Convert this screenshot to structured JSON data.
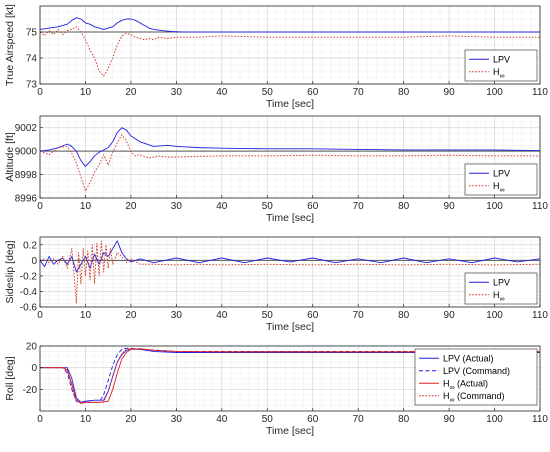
{
  "chart_data": [
    {
      "type": "line",
      "xlabel": "Time [sec]",
      "ylabel": "True Airspeed [kt]",
      "xlim": [
        0,
        110
      ],
      "ylim": [
        73,
        76
      ],
      "xticks": [
        0,
        10,
        20,
        30,
        40,
        50,
        60,
        70,
        80,
        90,
        100,
        110
      ],
      "yticks": [
        73,
        74,
        75
      ],
      "grid": true,
      "legend": "bottom-right",
      "reference": {
        "value": 75,
        "color": "#555555"
      },
      "series": [
        {
          "name": "LPV",
          "color": "#2020e0",
          "dash": "solid",
          "x": [
            0,
            2,
            4,
            6,
            7,
            8,
            9,
            10,
            11,
            12,
            13,
            14,
            15,
            16,
            17,
            18,
            19,
            20,
            21,
            22,
            23,
            24,
            25,
            27,
            29,
            31,
            33,
            36,
            40,
            50,
            60,
            70,
            80,
            90,
            100,
            110
          ],
          "y": [
            75.1,
            75.15,
            75.2,
            75.3,
            75.45,
            75.55,
            75.5,
            75.35,
            75.3,
            75.2,
            75.15,
            75.1,
            75.15,
            75.2,
            75.35,
            75.45,
            75.5,
            75.5,
            75.45,
            75.35,
            75.25,
            75.15,
            75.1,
            75.05,
            75.02,
            75.0,
            75.0,
            75.0,
            75.0,
            75.0,
            75.0,
            75.0,
            75.0,
            75.0,
            75.0,
            75.0
          ]
        },
        {
          "name": "H",
          "name_sub": "∞",
          "color": "#cc3322",
          "dash": "dotted",
          "x": [
            0,
            1,
            2,
            3,
            4,
            5,
            6,
            7,
            8,
            9,
            10,
            11,
            12,
            13,
            14,
            15,
            16,
            17,
            18,
            19,
            20,
            21,
            22,
            23,
            24,
            25,
            26,
            28,
            30,
            35,
            40,
            50,
            60,
            70,
            80,
            90,
            100,
            110
          ],
          "y": [
            75,
            74.85,
            75.05,
            74.9,
            75.1,
            74.9,
            75.05,
            75.1,
            75.2,
            75.0,
            74.7,
            74.3,
            74.0,
            73.5,
            73.3,
            73.6,
            74.0,
            74.5,
            74.85,
            74.95,
            74.9,
            74.8,
            74.75,
            74.7,
            74.75,
            74.7,
            74.8,
            74.75,
            74.8,
            74.8,
            74.85,
            74.8,
            74.8,
            74.8,
            74.8,
            74.85,
            74.8,
            74.8
          ]
        }
      ]
    },
    {
      "type": "line",
      "xlabel": "Time [sec]",
      "ylabel": "Altitude [ft]",
      "xlim": [
        0,
        110
      ],
      "ylim": [
        8996,
        9003
      ],
      "xticks": [
        0,
        10,
        20,
        30,
        40,
        50,
        60,
        70,
        80,
        90,
        100,
        110
      ],
      "yticks": [
        8996,
        8998,
        9000,
        9002
      ],
      "grid": true,
      "legend": "bottom-right",
      "reference": {
        "value": 9000,
        "color": "#555555"
      },
      "series": [
        {
          "name": "LPV",
          "color": "#2020e0",
          "dash": "solid",
          "x": [
            0,
            2,
            4,
            6,
            7,
            8,
            9,
            10,
            11,
            12,
            13,
            14,
            15,
            16,
            17,
            18,
            19,
            20,
            22,
            25,
            28,
            30,
            35,
            40,
            50,
            60,
            70,
            80,
            90,
            100,
            110
          ],
          "y": [
            9000,
            9000.1,
            9000.3,
            9000.6,
            9000.4,
            9000,
            8999.2,
            8998.7,
            8999.1,
            8999.6,
            8999.9,
            9000.1,
            9000.3,
            9000.8,
            9001.6,
            9002.0,
            9001.8,
            9001.3,
            9000.8,
            9000.4,
            9000.5,
            9000.4,
            9000.3,
            9000.25,
            9000.2,
            9000.2,
            9000.15,
            9000.1,
            9000.1,
            9000.1,
            9000.05
          ]
        },
        {
          "name": "H",
          "name_sub": "∞",
          "color": "#cc3322",
          "dash": "dotted",
          "x": [
            0,
            2,
            4,
            6,
            7,
            8,
            9,
            10,
            11,
            12,
            13,
            14,
            15,
            16,
            17,
            18,
            19,
            20,
            21,
            22,
            24,
            26,
            28,
            30,
            35,
            40,
            50,
            60,
            70,
            80,
            90,
            100,
            110
          ],
          "y": [
            9000,
            8999.7,
            9000.3,
            9000.4,
            8999.8,
            8999,
            8997.8,
            8996.6,
            8997.3,
            8998.2,
            8998.8,
            8999.7,
            8998.8,
            8999.9,
            9000.7,
            9001.4,
            9000.9,
            8999.9,
            8999.6,
            8999.7,
            8999.4,
            8999.6,
            8999.5,
            8999.5,
            8999.55,
            8999.6,
            8999.6,
            8999.65,
            8999.6,
            8999.6,
            8999.65,
            8999.6,
            8999.6
          ]
        }
      ]
    },
    {
      "type": "line",
      "xlabel": "Time [sec]",
      "ylabel": "Sideslip [deg]",
      "xlim": [
        0,
        110
      ],
      "ylim": [
        -0.6,
        0.3
      ],
      "xticks": [
        0,
        10,
        20,
        30,
        40,
        50,
        60,
        70,
        80,
        90,
        100,
        110
      ],
      "yticks": [
        -0.6,
        -0.4,
        -0.2,
        0,
        0.2
      ],
      "grid": true,
      "legend": "bottom-right",
      "reference": {
        "value": 0,
        "color": "#555555"
      },
      "series": [
        {
          "name": "LPV",
          "color": "#2020e0",
          "dash": "solid",
          "x": [
            0,
            1,
            2,
            3,
            4,
            5,
            6,
            7,
            8,
            9,
            10,
            11,
            12,
            13,
            14,
            15,
            16,
            17,
            18,
            19,
            20,
            22,
            25,
            30,
            35,
            40,
            45,
            50,
            55,
            60,
            65,
            70,
            75,
            80,
            85,
            90,
            95,
            100,
            105,
            110
          ],
          "y": [
            0,
            -0.08,
            0.05,
            -0.05,
            0,
            0.03,
            -0.05,
            0.05,
            -0.15,
            -0.05,
            0.05,
            -0.1,
            0.08,
            -0.05,
            0.1,
            0.05,
            0.15,
            0.25,
            0.1,
            0.02,
            -0.02,
            0.02,
            -0.03,
            0.03,
            -0.03,
            0.03,
            -0.03,
            0.03,
            -0.02,
            0.03,
            -0.03,
            0.02,
            -0.03,
            0.03,
            -0.03,
            0.02,
            -0.03,
            0.03,
            -0.02,
            0.02
          ]
        },
        {
          "name": "H",
          "name_sub": "∞",
          "color": "#cc3322",
          "dash": "dotted",
          "x": [
            0,
            1,
            2,
            3,
            4,
            5,
            6,
            7,
            7.5,
            8,
            8.5,
            9,
            9.5,
            10,
            10.5,
            11,
            11.5,
            12,
            12.5,
            13,
            13.5,
            14,
            14.5,
            15,
            15.5,
            16,
            17,
            18,
            19,
            20,
            22,
            25,
            30,
            35,
            40,
            50,
            60,
            70,
            80,
            90,
            100,
            110
          ],
          "y": [
            0,
            0.02,
            -0.03,
            0.02,
            -0.05,
            0.05,
            -0.1,
            0.15,
            -0.2,
            -0.55,
            0.1,
            -0.3,
            0.15,
            -0.2,
            0.12,
            -0.25,
            0.2,
            -0.3,
            0.22,
            -0.2,
            0.25,
            -0.15,
            0.2,
            -0.1,
            0.15,
            -0.05,
            0.1,
            0.05,
            -0.03,
            0.02,
            -0.05,
            -0.05,
            -0.06,
            -0.05,
            -0.06,
            -0.05,
            -0.06,
            -0.05,
            -0.06,
            -0.05,
            -0.06,
            -0.05
          ]
        }
      ]
    },
    {
      "type": "line",
      "xlabel": "Time [sec]",
      "ylabel": "Roll [deg]",
      "xlim": [
        0,
        110
      ],
      "ylim": [
        -40,
        20
      ],
      "xticks": [
        0,
        10,
        20,
        30,
        40,
        50,
        60,
        70,
        80,
        90,
        100,
        110
      ],
      "yticks": [
        -20,
        0,
        20
      ],
      "grid": true,
      "legend": "top-right",
      "series": [
        {
          "name": "LPV (Actual)",
          "color": "#2020e0",
          "dash": "solid",
          "x": [
            0,
            4,
            6,
            7,
            8,
            9,
            10,
            12,
            14,
            15,
            16,
            17,
            18,
            19,
            20,
            22,
            25,
            30,
            40,
            50,
            60,
            70,
            80,
            90,
            100,
            110
          ],
          "y": [
            0,
            0,
            0,
            -10,
            -28,
            -32,
            -31,
            -30,
            -30,
            -22,
            -8,
            5,
            12,
            16,
            17,
            17,
            15,
            14,
            14,
            14,
            14,
            14,
            14,
            14,
            14,
            14
          ]
        },
        {
          "name": "LPV (Command)",
          "color": "#2020e0",
          "dash": "dashed",
          "x": [
            0,
            5,
            6,
            7,
            8,
            9,
            13,
            14,
            15,
            16,
            17,
            18,
            19,
            22,
            30,
            40,
            50,
            60,
            70,
            80,
            90,
            100,
            110
          ],
          "y": [
            0,
            0,
            -5,
            -20,
            -31,
            -32,
            -32,
            -25,
            -12,
            2,
            12,
            17,
            18,
            17,
            15,
            15,
            15,
            15,
            15,
            15,
            15,
            15,
            15
          ]
        },
        {
          "name": "H",
          "name_sub": "∞",
          "name_suffix": " (Actual)",
          "color": "#dd2222",
          "dash": "solid",
          "x": [
            0,
            5,
            6,
            7,
            8,
            9,
            10,
            13,
            15,
            16,
            17,
            18,
            19,
            20,
            22,
            25,
            30,
            40,
            50,
            60,
            70,
            80,
            90,
            100,
            110
          ],
          "y": [
            0,
            0,
            -2,
            -15,
            -30,
            -33,
            -32,
            -32,
            -31,
            -20,
            -5,
            8,
            14,
            17,
            17.5,
            16,
            15,
            14.5,
            14.5,
            14.5,
            14.5,
            14.5,
            14.5,
            14.5,
            14.5
          ]
        },
        {
          "name": "H",
          "name_sub": "∞",
          "name_suffix": " (Command)",
          "color": "#dd2222",
          "dash": "dotted",
          "x": [
            0,
            5,
            6,
            7,
            8,
            9,
            14,
            15,
            16,
            17,
            18,
            19,
            20,
            22,
            30,
            40,
            50,
            60,
            70,
            80,
            90,
            100,
            110
          ],
          "y": [
            0,
            0,
            -3,
            -18,
            -31,
            -32,
            -32,
            -22,
            -8,
            5,
            13,
            17,
            18,
            17,
            15,
            15,
            15,
            15,
            15,
            15,
            15,
            15,
            15
          ]
        }
      ]
    }
  ]
}
